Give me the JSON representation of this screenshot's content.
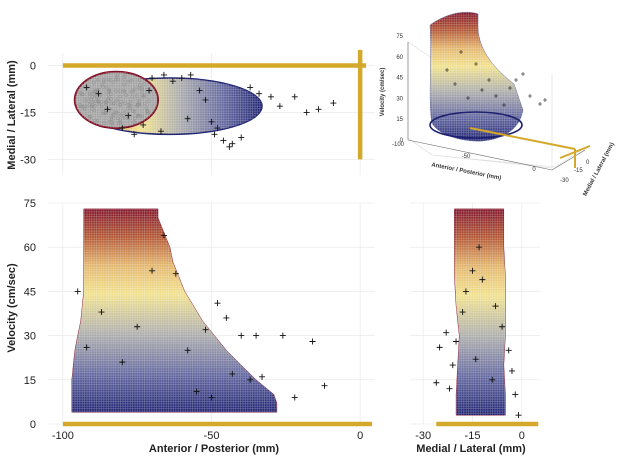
{
  "colors": {
    "gold": "#d4a82a",
    "grid": "#e6e6e6",
    "dot": "#8f8f8f",
    "cross": "#111111",
    "ramp": [
      "#1b1f6e",
      "#5a5f9a",
      "#a9a9a9",
      "#f0e08a",
      "#e2b468",
      "#b0512c",
      "#7e1025"
    ]
  },
  "chart_data": [
    {
      "type": "scatter",
      "name": "top-view-ap-ml",
      "xlim": [
        -105,
        5
      ],
      "ylim": [
        -35,
        4
      ],
      "ylabel": "Medial / Lateral (mm)",
      "xticks": [
        -100,
        -50,
        0
      ],
      "yticks": [
        0,
        -15,
        -30
      ],
      "ytick_labels": [
        "0",
        "-15",
        "-30"
      ],
      "ellipse_outer": {
        "cx": -64,
        "cy": -13,
        "rx": 31,
        "ry": 9
      },
      "ellipse_inner": {
        "cx": -82,
        "cy": -11,
        "rx": 14,
        "ry": 9
      },
      "guide_lines": [
        {
          "x": [
            -100,
            2
          ],
          "y": [
            0,
            0
          ]
        },
        {
          "x": [
            0,
            0
          ],
          "y": [
            5,
            -30
          ]
        }
      ],
      "markers": [
        [
          -92,
          -7
        ],
        [
          -88,
          -9
        ],
        [
          -80,
          -20
        ],
        [
          -76,
          -22
        ],
        [
          -73,
          -19
        ],
        [
          -70,
          -4
        ],
        [
          -66,
          -3
        ],
        [
          -63,
          -5
        ],
        [
          -60,
          -4
        ],
        [
          -57,
          -3
        ],
        [
          -54,
          -8
        ],
        [
          -52,
          -11
        ],
        [
          -50,
          -18
        ],
        [
          -48,
          -20
        ],
        [
          -46,
          -24
        ],
        [
          -44,
          -26
        ],
        [
          -43,
          -25
        ],
        [
          -40,
          -23
        ],
        [
          -37,
          -7
        ],
        [
          -34,
          -9
        ],
        [
          -30,
          -10
        ],
        [
          -27,
          -13
        ],
        [
          -22,
          -10
        ],
        [
          -18,
          -15
        ],
        [
          -14,
          -14
        ],
        [
          -9,
          -12
        ],
        [
          -85,
          -14
        ],
        [
          -78,
          -16
        ],
        [
          -71,
          -8
        ],
        [
          -58,
          -17
        ],
        [
          -67,
          -21
        ],
        [
          -49,
          -22
        ]
      ]
    },
    {
      "type": "surface-3d",
      "name": "inset-3d-view",
      "xlabel": "Anterior / Posterior (mm)",
      "ylabel": "Medial / Lateral (mm)",
      "zlabel": "Velocity (cm/sec)",
      "zticks": [
        0,
        15,
        30,
        45,
        60,
        75
      ],
      "xticks": [
        "-100",
        "-50",
        "0"
      ],
      "yticks": [
        "-30",
        "-15",
        "0"
      ]
    },
    {
      "type": "scatter",
      "name": "side-view-ap-velocity",
      "xlim": [
        -105,
        5
      ],
      "ylim": [
        0,
        75
      ],
      "xlabel": "Anterior / Posterior (mm)",
      "ylabel": "Velocity (cm/sec)",
      "xticks": [
        -100,
        -50,
        0
      ],
      "yticks": [
        0,
        15,
        30,
        45,
        60,
        75
      ],
      "profile": {
        "velocity": [
          4,
          7,
          10,
          15,
          20,
          25,
          30,
          35,
          40,
          45,
          50,
          55,
          60,
          65,
          70,
          73
        ],
        "ant": [
          -97,
          -97,
          -97,
          -97,
          -96.5,
          -96,
          -95,
          -94,
          -93.5,
          -93,
          -93,
          -93,
          -93,
          -93,
          -93,
          -93
        ],
        "post": [
          -28,
          -28,
          -29,
          -35,
          -40,
          -45,
          -49,
          -53,
          -56,
          -59,
          -61,
          -63,
          -64,
          -66,
          -68,
          -68
        ]
      },
      "markers": [
        [
          -95,
          45
        ],
        [
          -92,
          26
        ],
        [
          -87,
          38
        ],
        [
          -80,
          21
        ],
        [
          -75,
          33
        ],
        [
          -70,
          52
        ],
        [
          -66,
          64
        ],
        [
          -62,
          51
        ],
        [
          -58,
          25
        ],
        [
          -55,
          11
        ],
        [
          -52,
          32
        ],
        [
          -50,
          9
        ],
        [
          -48,
          41
        ],
        [
          -45,
          36
        ],
        [
          -43,
          17
        ],
        [
          -40,
          30
        ],
        [
          -37,
          15
        ],
        [
          -35,
          30
        ],
        [
          -33,
          16
        ],
        [
          -26,
          30
        ],
        [
          -22,
          9
        ],
        [
          -16,
          28
        ],
        [
          -12,
          13
        ]
      ],
      "guide_lines": [
        {
          "x": [
            -100,
            4
          ],
          "y": [
            0,
            0
          ]
        }
      ]
    },
    {
      "type": "scatter",
      "name": "front-view-ml-velocity",
      "xlim": [
        -34,
        4
      ],
      "ylim": [
        0,
        75
      ],
      "xlabel": "Medial / Lateral (mm)",
      "xticks": [
        -30,
        -15,
        0
      ],
      "profile": {
        "velocity": [
          3,
          10,
          20,
          30,
          40,
          50,
          60,
          73
        ],
        "left": [
          -20,
          -20,
          -19.5,
          -19,
          -20,
          -20.5,
          -20.5,
          -20.5
        ],
        "right": [
          -5,
          -5,
          -5.5,
          -5,
          -5,
          -5,
          -5.5,
          -5.5
        ]
      },
      "markers": [
        [
          -22,
          12
        ],
        [
          -21,
          20
        ],
        [
          -20,
          28
        ],
        [
          -23,
          31
        ],
        [
          -25,
          26
        ],
        [
          -26,
          14
        ],
        [
          -18,
          38
        ],
        [
          -17,
          45
        ],
        [
          -15,
          52
        ],
        [
          -12,
          49
        ],
        [
          -8,
          40
        ],
        [
          -6,
          33
        ],
        [
          -4,
          25
        ],
        [
          -3,
          18
        ],
        [
          -2,
          10
        ],
        [
          -1,
          3
        ],
        [
          -9,
          15
        ],
        [
          -13,
          60
        ],
        [
          -14,
          22
        ]
      ],
      "guide_lines": [
        {
          "x": [
            -26,
            5
          ],
          "y": [
            0,
            0
          ]
        }
      ]
    }
  ]
}
